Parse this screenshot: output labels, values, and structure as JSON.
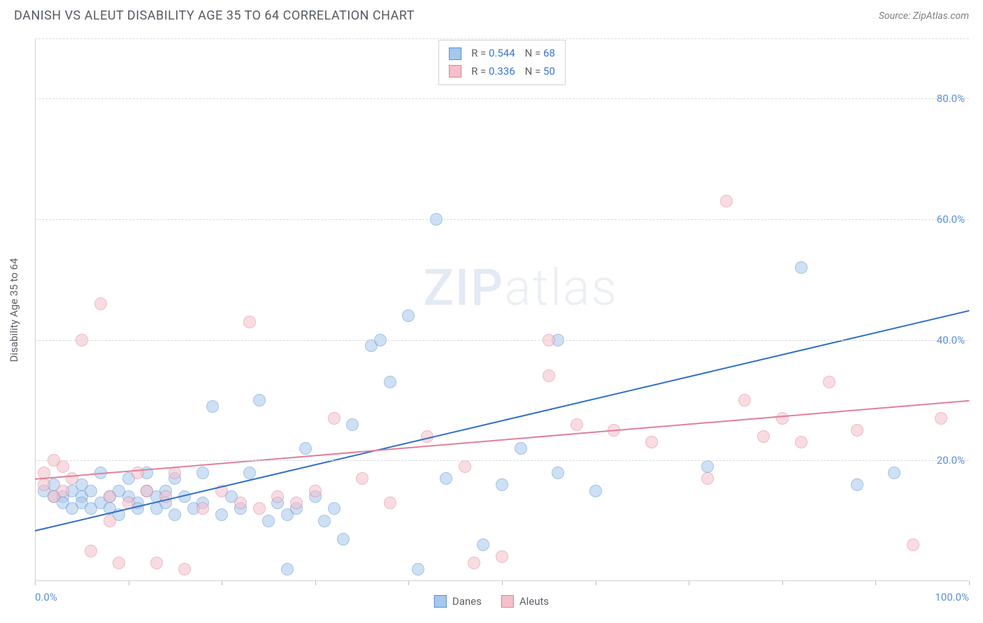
{
  "header": {
    "title": "DANISH VS ALEUT DISABILITY AGE 35 TO 64 CORRELATION CHART",
    "source": "Source: ZipAtlas.com"
  },
  "chart": {
    "type": "scatter",
    "ylabel": "Disability Age 35 to 64",
    "watermark": "ZIPatlas",
    "background_color": "#ffffff",
    "grid_color": "#d8dadd",
    "axis_color": "#cfd2d6",
    "tick_color": "#5b8fd6",
    "xlim": [
      0,
      100
    ],
    "ylim": [
      0,
      90
    ],
    "xtick_positions": [
      0,
      10,
      20,
      30,
      40,
      50,
      60,
      70,
      80,
      90,
      100
    ],
    "xtick_labels": {
      "0": "0.0%",
      "100": "100.0%"
    },
    "ytick_positions": [
      20,
      40,
      60,
      80
    ],
    "ytick_labels": {
      "20": "20.0%",
      "40": "40.0%",
      "60": "60.0%",
      "80": "80.0%"
    },
    "marker_radius": 9,
    "marker_opacity": 0.55,
    "series": [
      {
        "name": "Danes",
        "color_fill": "#a6c8ec",
        "color_stroke": "#5b8fd6",
        "line_color": "#2f6fc5",
        "line_width": 2.2,
        "trend": {
          "x1": 0,
          "y1": 8.5,
          "x2": 100,
          "y2": 45
        },
        "stats": {
          "R": "0.544",
          "N": "68"
        },
        "points": [
          [
            1,
            15
          ],
          [
            2,
            14
          ],
          [
            2,
            16
          ],
          [
            3,
            14
          ],
          [
            3,
            13
          ],
          [
            4,
            12
          ],
          [
            4,
            15
          ],
          [
            5,
            14
          ],
          [
            5,
            16
          ],
          [
            5,
            13
          ],
          [
            6,
            12
          ],
          [
            6,
            15
          ],
          [
            7,
            13
          ],
          [
            7,
            18
          ],
          [
            8,
            14
          ],
          [
            8,
            12
          ],
          [
            9,
            15
          ],
          [
            9,
            11
          ],
          [
            10,
            17
          ],
          [
            10,
            14
          ],
          [
            11,
            13
          ],
          [
            11,
            12
          ],
          [
            12,
            15
          ],
          [
            12,
            18
          ],
          [
            13,
            14
          ],
          [
            13,
            12
          ],
          [
            14,
            13
          ],
          [
            14,
            15
          ],
          [
            15,
            11
          ],
          [
            15,
            17
          ],
          [
            16,
            14
          ],
          [
            17,
            12
          ],
          [
            18,
            13
          ],
          [
            18,
            18
          ],
          [
            19,
            29
          ],
          [
            20,
            11
          ],
          [
            21,
            14
          ],
          [
            22,
            12
          ],
          [
            23,
            18
          ],
          [
            24,
            30
          ],
          [
            25,
            10
          ],
          [
            26,
            13
          ],
          [
            27,
            2
          ],
          [
            27,
            11
          ],
          [
            28,
            12
          ],
          [
            29,
            22
          ],
          [
            30,
            14
          ],
          [
            31,
            10
          ],
          [
            32,
            12
          ],
          [
            33,
            7
          ],
          [
            34,
            26
          ],
          [
            36,
            39
          ],
          [
            37,
            40
          ],
          [
            38,
            33
          ],
          [
            40,
            44
          ],
          [
            41,
            2
          ],
          [
            43,
            60
          ],
          [
            44,
            17
          ],
          [
            48,
            6
          ],
          [
            50,
            16
          ],
          [
            52,
            22
          ],
          [
            56,
            18
          ],
          [
            56,
            40
          ],
          [
            60,
            15
          ],
          [
            72,
            19
          ],
          [
            82,
            52
          ],
          [
            88,
            16
          ],
          [
            92,
            18
          ]
        ]
      },
      {
        "name": "Aleuts",
        "color_fill": "#f4c0cb",
        "color_stroke": "#e17f98",
        "line_color": "#e17f98",
        "line_width": 2.2,
        "trend": {
          "x1": 0,
          "y1": 17,
          "x2": 100,
          "y2": 30
        },
        "stats": {
          "R": "0.336",
          "N": "50"
        },
        "points": [
          [
            1,
            16
          ],
          [
            1,
            18
          ],
          [
            2,
            20
          ],
          [
            2,
            14
          ],
          [
            3,
            19
          ],
          [
            3,
            15
          ],
          [
            4,
            17
          ],
          [
            5,
            40
          ],
          [
            6,
            5
          ],
          [
            7,
            46
          ],
          [
            8,
            14
          ],
          [
            8,
            10
          ],
          [
            9,
            3
          ],
          [
            10,
            13
          ],
          [
            11,
            18
          ],
          [
            12,
            15
          ],
          [
            13,
            3
          ],
          [
            14,
            14
          ],
          [
            15,
            18
          ],
          [
            16,
            2
          ],
          [
            18,
            12
          ],
          [
            20,
            15
          ],
          [
            22,
            13
          ],
          [
            23,
            43
          ],
          [
            24,
            12
          ],
          [
            26,
            14
          ],
          [
            28,
            13
          ],
          [
            30,
            15
          ],
          [
            32,
            27
          ],
          [
            35,
            17
          ],
          [
            38,
            13
          ],
          [
            42,
            24
          ],
          [
            46,
            19
          ],
          [
            47,
            3
          ],
          [
            50,
            4
          ],
          [
            55,
            40
          ],
          [
            55,
            34
          ],
          [
            58,
            26
          ],
          [
            62,
            25
          ],
          [
            66,
            23
          ],
          [
            72,
            17
          ],
          [
            74,
            63
          ],
          [
            76,
            30
          ],
          [
            78,
            24
          ],
          [
            80,
            27
          ],
          [
            82,
            23
          ],
          [
            85,
            33
          ],
          [
            88,
            25
          ],
          [
            94,
            6
          ],
          [
            97,
            27
          ]
        ]
      }
    ],
    "legend": [
      {
        "label": "Danes",
        "fill": "#a6c8ec",
        "stroke": "#5b8fd6"
      },
      {
        "label": "Aleuts",
        "fill": "#f4c0cb",
        "stroke": "#e17f98"
      }
    ]
  }
}
